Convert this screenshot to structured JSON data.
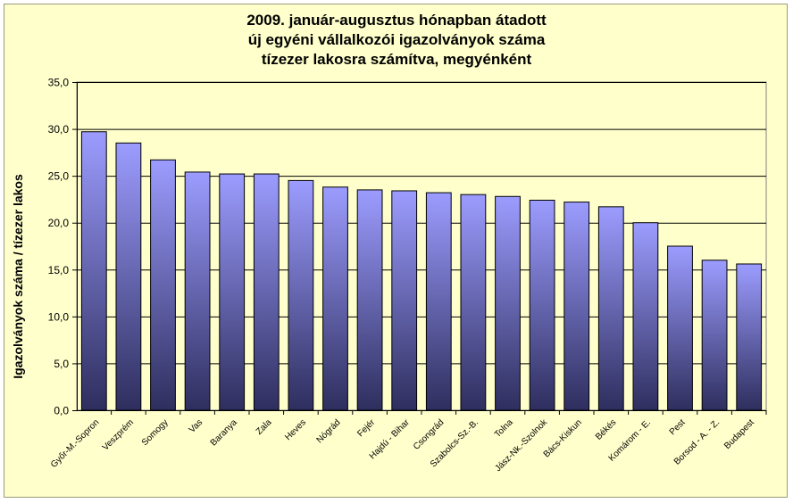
{
  "chart_data": {
    "type": "bar",
    "title_lines": [
      "2009. január-augusztus hónapban átadott",
      "új egyéni vállalkozói  igazolványok száma",
      "tízezer lakosra számítva, megyénként"
    ],
    "ylabel": "Igazolványok száma / tízezer lakos",
    "xlabel": "",
    "ylim": [
      0,
      35
    ],
    "ytick_step": 5,
    "ytick_labels": [
      "0,0",
      "5,0",
      "10,0",
      "15,0",
      "20,0",
      "25,0",
      "30,0",
      "35,0"
    ],
    "grid": true,
    "legend": "none",
    "categories": [
      "Győr-M.-Sopron",
      "Veszprém",
      "Somogy",
      "Vas",
      "Baranya",
      "Zala",
      "Heves",
      "Nógrád",
      "Fejér",
      "Hajdú - Bihar",
      "Csongrád",
      "Szabolcs-Sz.-B.",
      "Tolna",
      "Jász-Nk.-Szolnok",
      "Bács-Kiskun",
      "Békés",
      "Komárom - E.",
      "Pest",
      "Borsod - A. - Z.",
      "Budapest"
    ],
    "values": [
      29.7,
      28.5,
      26.7,
      25.4,
      25.2,
      25.2,
      24.5,
      23.8,
      23.5,
      23.4,
      23.2,
      23.0,
      22.8,
      22.4,
      22.2,
      21.7,
      20.0,
      17.5,
      16.0,
      15.6
    ],
    "colors": {
      "background": "#ffffcc",
      "plot_background": "#ffffcc",
      "bar_top": "#9c9cff",
      "bar_bottom": "#2e2e5e",
      "gridline": "#000000"
    }
  }
}
